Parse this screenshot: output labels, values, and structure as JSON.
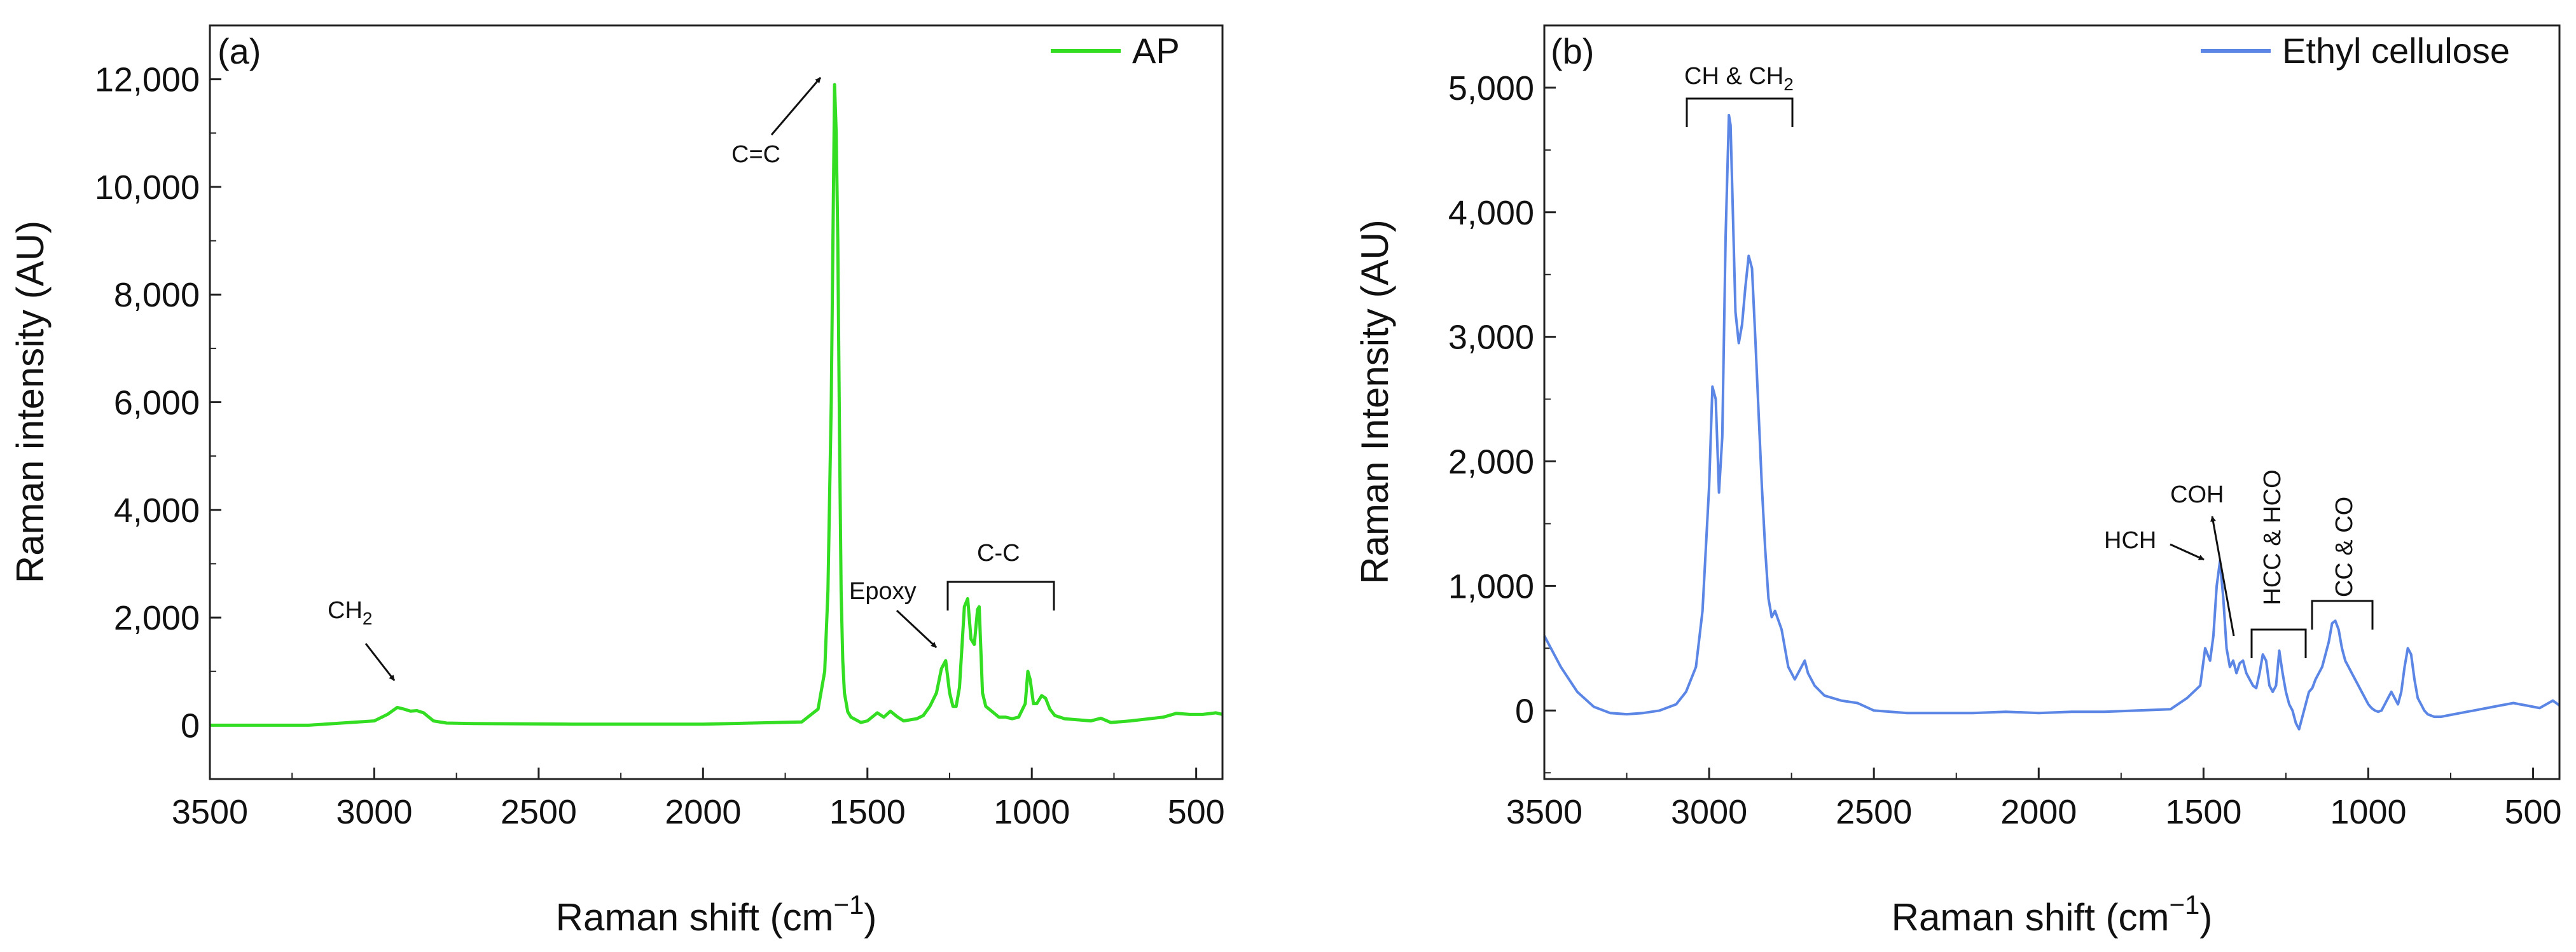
{
  "chart_data": [
    {
      "type": "line",
      "panel_label": "(a)",
      "title": "",
      "xlabel": "Raman shift (cm−1)",
      "xlabel_main": "Raman shift (cm",
      "xlabel_sup": "−1",
      "xlabel_close": ")",
      "ylabel": "Raman intensity (AU)",
      "xlim": [
        3500,
        420
      ],
      "ylim": [
        -1000,
        13000
      ],
      "x_ticks": [
        3500,
        3000,
        2500,
        2000,
        1500,
        1000,
        500
      ],
      "x_tick_labels": [
        "3500",
        "3000",
        "2500",
        "2000",
        "1500",
        "1000",
        "500"
      ],
      "y_ticks": [
        0,
        2000,
        4000,
        6000,
        8000,
        10000,
        12000
      ],
      "y_tick_labels": [
        "0",
        "2,000",
        "4,000",
        "6,000",
        "8,000",
        "10,000",
        "12,000"
      ],
      "legend": {
        "position": "top-right"
      },
      "series": [
        {
          "name": "AP",
          "color": "#33dd22",
          "x": [
            3500,
            3200,
            3000,
            2960,
            2930,
            2910,
            2890,
            2870,
            2850,
            2820,
            2780,
            2700,
            2400,
            2000,
            1700,
            1650,
            1630,
            1620,
            1610,
            1600,
            1595,
            1590,
            1585,
            1580,
            1575,
            1570,
            1560,
            1550,
            1520,
            1500,
            1470,
            1450,
            1430,
            1410,
            1390,
            1370,
            1350,
            1330,
            1310,
            1290,
            1275,
            1262,
            1250,
            1240,
            1230,
            1220,
            1205,
            1195,
            1185,
            1175,
            1165,
            1160,
            1150,
            1140,
            1120,
            1100,
            1080,
            1060,
            1040,
            1020,
            1012,
            1005,
            995,
            985,
            970,
            958,
            945,
            930,
            900,
            860,
            820,
            790,
            760,
            700,
            600,
            560,
            520,
            480,
            440,
            420
          ],
          "y": [
            0,
            0,
            80,
            200,
            330,
            300,
            260,
            270,
            230,
            80,
            40,
            30,
            20,
            20,
            60,
            300,
            1000,
            2500,
            6000,
            11900,
            11000,
            9000,
            5500,
            2500,
            1200,
            600,
            250,
            150,
            50,
            80,
            230,
            150,
            260,
            160,
            80,
            100,
            120,
            180,
            350,
            600,
            1050,
            1200,
            600,
            350,
            350,
            700,
            2200,
            2350,
            1600,
            1500,
            2150,
            2200,
            600,
            350,
            250,
            150,
            150,
            120,
            150,
            400,
            1000,
            850,
            400,
            400,
            550,
            500,
            300,
            180,
            120,
            100,
            80,
            130,
            50,
            80,
            150,
            220,
            200,
            200,
            230,
            200
          ]
        }
      ],
      "annotations": [
        {
          "text": "CH",
          "sub": "2"
        },
        {
          "text": "C=C"
        },
        {
          "text": "Epoxy"
        },
        {
          "text": "C-C"
        }
      ]
    },
    {
      "type": "line",
      "panel_label": "(b)",
      "title": "",
      "xlabel": "Raman shift (cm−1)",
      "xlabel_main": "Raman shift (cm",
      "xlabel_sup": "−1",
      "xlabel_close": ")",
      "ylabel": "Raman Intensity (AU)",
      "xlim": [
        3500,
        420
      ],
      "ylim": [
        -550,
        5500
      ],
      "x_ticks": [
        3500,
        3000,
        2500,
        2000,
        1500,
        1000,
        500
      ],
      "x_tick_labels": [
        "3500",
        "3000",
        "2500",
        "2000",
        "1500",
        "1000",
        "500"
      ],
      "y_ticks": [
        0,
        1000,
        2000,
        3000,
        4000,
        5000
      ],
      "y_tick_labels": [
        "0",
        "1,000",
        "2,000",
        "3,000",
        "4,000",
        "5,000"
      ],
      "legend": {
        "position": "top-right"
      },
      "series": [
        {
          "name": "Ethyl cellulose",
          "color": "#5b86e5",
          "x": [
            3500,
            3450,
            3400,
            3350,
            3300,
            3250,
            3200,
            3150,
            3100,
            3070,
            3040,
            3020,
            3000,
            2990,
            2980,
            2970,
            2960,
            2950,
            2940,
            2935,
            2930,
            2920,
            2910,
            2900,
            2890,
            2880,
            2870,
            2860,
            2850,
            2840,
            2830,
            2820,
            2810,
            2800,
            2780,
            2760,
            2740,
            2720,
            2710,
            2700,
            2680,
            2650,
            2600,
            2550,
            2500,
            2400,
            2300,
            2200,
            2100,
            2000,
            1900,
            1800,
            1700,
            1600,
            1550,
            1510,
            1495,
            1480,
            1470,
            1460,
            1450,
            1440,
            1430,
            1420,
            1410,
            1400,
            1390,
            1380,
            1370,
            1360,
            1350,
            1340,
            1330,
            1320,
            1310,
            1300,
            1290,
            1280,
            1270,
            1260,
            1250,
            1240,
            1230,
            1220,
            1210,
            1200,
            1190,
            1180,
            1170,
            1160,
            1150,
            1140,
            1130,
            1120,
            1110,
            1100,
            1090,
            1080,
            1070,
            1060,
            1050,
            1040,
            1030,
            1020,
            1010,
            1000,
            990,
            980,
            970,
            960,
            950,
            940,
            930,
            920,
            910,
            900,
            890,
            880,
            870,
            860,
            850,
            840,
            830,
            820,
            800,
            780,
            760,
            740,
            720,
            700,
            680,
            660,
            640,
            620,
            600,
            580,
            560,
            540,
            520,
            500,
            480,
            460,
            440,
            420
          ],
          "y": [
            600,
            350,
            150,
            30,
            -20,
            -30,
            -20,
            0,
            50,
            150,
            350,
            800,
            1800,
            2600,
            2500,
            1750,
            2200,
            3800,
            4780,
            4700,
            4200,
            3200,
            2950,
            3100,
            3400,
            3650,
            3550,
            3000,
            2400,
            1800,
            1300,
            900,
            750,
            800,
            650,
            350,
            250,
            350,
            400,
            300,
            200,
            120,
            80,
            60,
            0,
            -20,
            -20,
            -20,
            -10,
            -20,
            -10,
            -10,
            0,
            10,
            100,
            200,
            500,
            400,
            600,
            1000,
            1200,
            900,
            500,
            350,
            400,
            300,
            380,
            400,
            300,
            250,
            200,
            180,
            300,
            450,
            400,
            200,
            150,
            200,
            480,
            300,
            150,
            50,
            0,
            -100,
            -150,
            -50,
            50,
            150,
            180,
            250,
            300,
            350,
            450,
            550,
            700,
            720,
            650,
            500,
            400,
            350,
            300,
            250,
            200,
            150,
            100,
            50,
            20,
            0,
            -10,
            0,
            50,
            100,
            150,
            100,
            50,
            150,
            350,
            500,
            450,
            250,
            100,
            50,
            0,
            -30,
            -50,
            -50,
            -40,
            -30,
            -20,
            -10,
            0,
            10,
            20,
            30,
            40,
            50,
            60,
            50,
            40,
            30,
            20,
            50,
            80,
            40
          ]
        }
      ],
      "annotations": [
        {
          "text": "CH & CH",
          "sub": "2"
        },
        {
          "text": "HCH"
        },
        {
          "text": "COH"
        },
        {
          "text": "HCC & HCO"
        },
        {
          "text": "CC & CO"
        }
      ]
    }
  ]
}
